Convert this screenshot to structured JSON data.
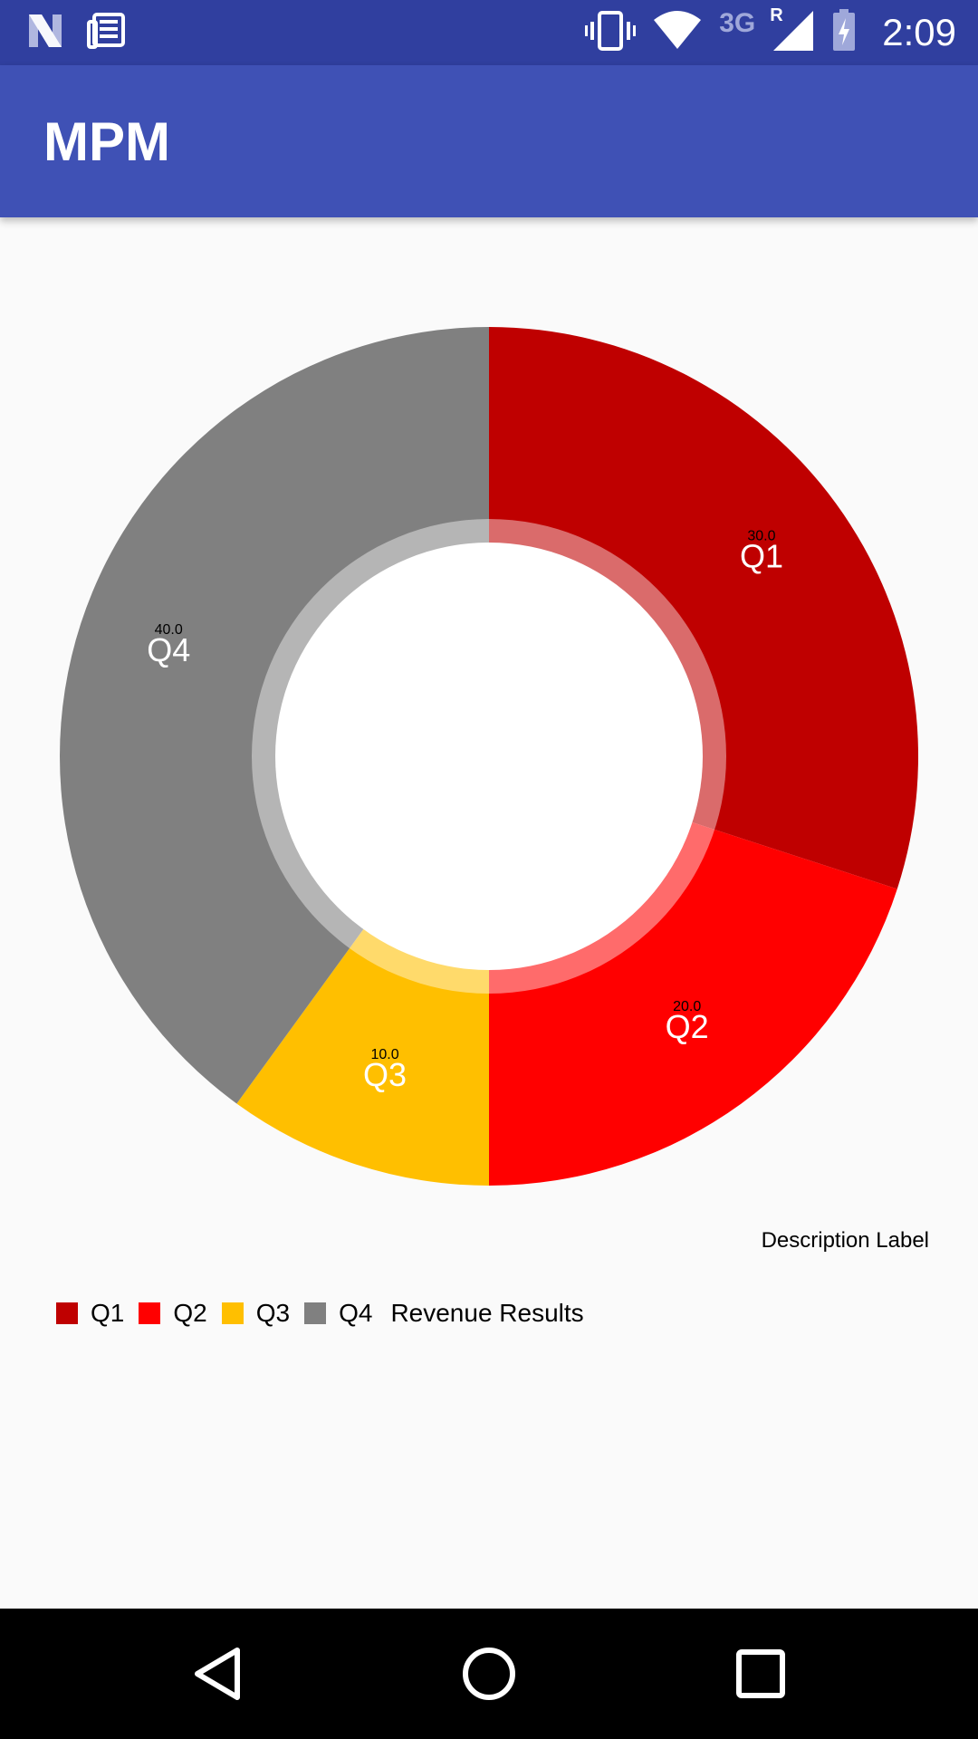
{
  "status_bar": {
    "time": "2:09",
    "network_type": "3G",
    "roaming": "R",
    "icons": [
      "notification-n-icon",
      "news-icon",
      "vibrate-icon",
      "wifi-icon",
      "cell-signal-icon",
      "battery-charging-icon"
    ]
  },
  "app_bar": {
    "title": "MPM"
  },
  "chart_data": {
    "type": "pie",
    "style": "donut",
    "categories": [
      "Q1",
      "Q2",
      "Q3",
      "Q4"
    ],
    "values": [
      30.0,
      20.0,
      10.0,
      40.0
    ],
    "value_labels": [
      "30.0",
      "20.0",
      "10.0",
      "40.0"
    ],
    "colors": [
      "#bf0000",
      "#ff0000",
      "#ffbf00",
      "#808080"
    ],
    "description": "Description Label",
    "legend_title": "Revenue Results",
    "legend_position": "bottom-left",
    "start_angle": "top"
  },
  "nav_bar": {
    "icons": [
      "back-icon",
      "home-icon",
      "recents-icon"
    ]
  }
}
